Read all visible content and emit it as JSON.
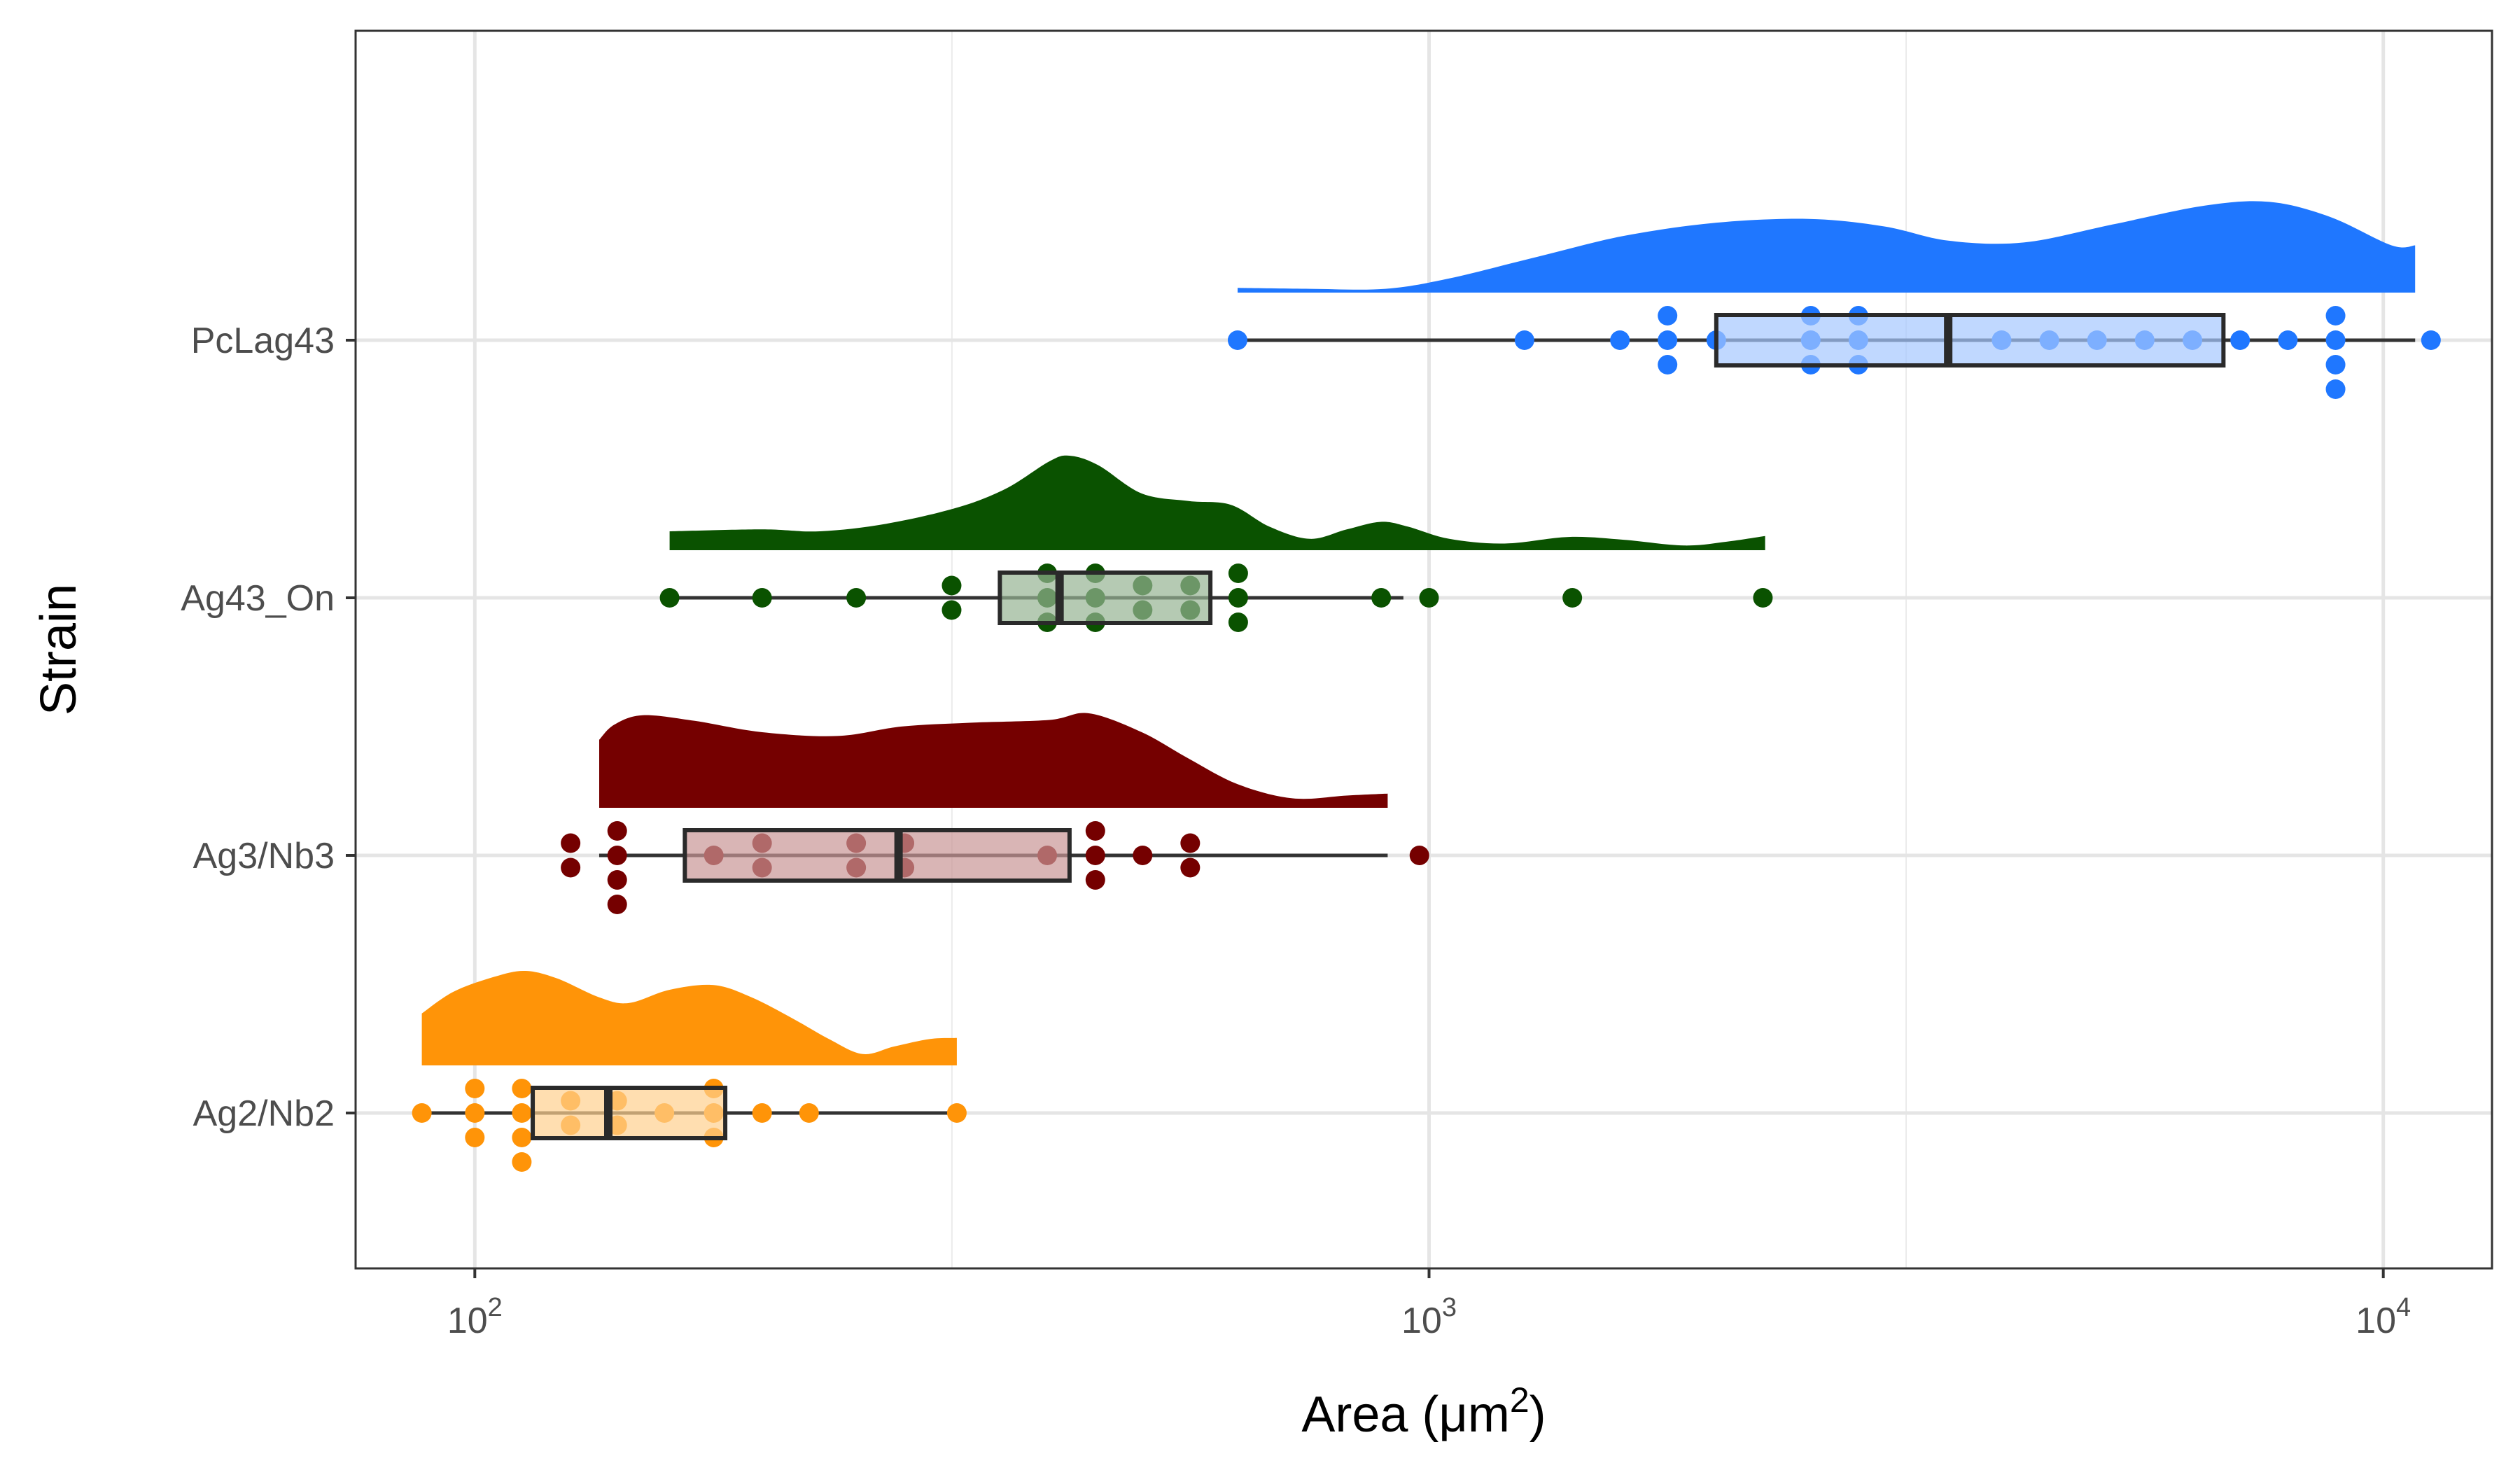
{
  "chart_data": {
    "type": "raincloud",
    "title": "",
    "xlabel": "Area (μm",
    "xlabel_superscript": "2",
    "xlabel_close": ")",
    "ylabel": "Strain",
    "x_scale": "log10",
    "xlim": [
      75,
      13000
    ],
    "x_ticks": [
      {
        "value": 100,
        "base": "10",
        "exp": "2"
      },
      {
        "value": 1000,
        "base": "10",
        "exp": "3"
      },
      {
        "value": 10000,
        "base": "10",
        "exp": "4"
      }
    ],
    "grid": true,
    "legend": "none",
    "series": [
      {
        "name": "Ag2/Nb2",
        "color": "#FF9408",
        "box_fill": "#FFD08F",
        "box": {
          "min": 88,
          "q1": 115,
          "median": 138,
          "q3": 183,
          "max": 320
        },
        "points": [
          {
            "x": 88,
            "o": 0
          },
          {
            "x": 100,
            "o": -1
          },
          {
            "x": 100,
            "o": 0
          },
          {
            "x": 100,
            "o": 1
          },
          {
            "x": 112,
            "o": -1
          },
          {
            "x": 112,
            "o": 0
          },
          {
            "x": 112,
            "o": 1
          },
          {
            "x": 112,
            "o": 2
          },
          {
            "x": 126,
            "o": -0.5
          },
          {
            "x": 126,
            "o": 0.5
          },
          {
            "x": 141,
            "o": -0.5
          },
          {
            "x": 141,
            "o": 0.5
          },
          {
            "x": 158,
            "o": 0
          },
          {
            "x": 178,
            "o": -1
          },
          {
            "x": 178,
            "o": 0
          },
          {
            "x": 178,
            "o": 1
          },
          {
            "x": 200,
            "o": 0
          },
          {
            "x": 224,
            "o": 0
          },
          {
            "x": 320,
            "o": 0
          }
        ],
        "density": [
          [
            88,
            0.55
          ],
          [
            95,
            0.78
          ],
          [
            105,
            0.94
          ],
          [
            113,
            1.0
          ],
          [
            122,
            0.92
          ],
          [
            135,
            0.72
          ],
          [
            145,
            0.66
          ],
          [
            160,
            0.8
          ],
          [
            178,
            0.85
          ],
          [
            195,
            0.72
          ],
          [
            215,
            0.5
          ],
          [
            235,
            0.28
          ],
          [
            255,
            0.12
          ],
          [
            275,
            0.2
          ],
          [
            300,
            0.28
          ],
          [
            320,
            0.29
          ]
        ]
      },
      {
        "name": "Ag3/Nb3",
        "color": "#750000",
        "box_fill": "#C99595",
        "box": {
          "min": 135,
          "q1": 166,
          "median": 278,
          "q3": 420,
          "max": 905
        },
        "points": [
          {
            "x": 126,
            "o": -0.5
          },
          {
            "x": 126,
            "o": 0.5
          },
          {
            "x": 141,
            "o": -1
          },
          {
            "x": 141,
            "o": 0
          },
          {
            "x": 141,
            "o": 1
          },
          {
            "x": 141,
            "o": 2
          },
          {
            "x": 178,
            "o": 0
          },
          {
            "x": 200,
            "o": -0.5
          },
          {
            "x": 200,
            "o": 0.5
          },
          {
            "x": 251,
            "o": -0.5
          },
          {
            "x": 251,
            "o": 0.5
          },
          {
            "x": 282,
            "o": -0.5
          },
          {
            "x": 282,
            "o": 0.5
          },
          {
            "x": 398,
            "o": 0
          },
          {
            "x": 447,
            "o": -1
          },
          {
            "x": 447,
            "o": 0
          },
          {
            "x": 447,
            "o": 1
          },
          {
            "x": 501,
            "o": 0
          },
          {
            "x": 562,
            "o": -0.5
          },
          {
            "x": 562,
            "o": 0.5
          },
          {
            "x": 977,
            "o": 0
          }
        ],
        "density": [
          [
            135,
            0.72
          ],
          [
            140,
            0.88
          ],
          [
            150,
            0.98
          ],
          [
            170,
            0.92
          ],
          [
            200,
            0.8
          ],
          [
            240,
            0.76
          ],
          [
            280,
            0.86
          ],
          [
            330,
            0.9
          ],
          [
            400,
            0.93
          ],
          [
            440,
            1.0
          ],
          [
            500,
            0.8
          ],
          [
            560,
            0.52
          ],
          [
            630,
            0.25
          ],
          [
            720,
            0.1
          ],
          [
            820,
            0.13
          ],
          [
            905,
            0.15
          ]
        ]
      },
      {
        "name": "Ag43_On",
        "color": "#0A5200",
        "box_fill": "#96B493",
        "box": {
          "min": 160,
          "q1": 355,
          "median": 410,
          "q3": 590,
          "max": 940
        },
        "points": [
          {
            "x": 160,
            "o": 0
          },
          {
            "x": 200,
            "o": 0
          },
          {
            "x": 251,
            "o": 0
          },
          {
            "x": 316,
            "o": -0.5
          },
          {
            "x": 316,
            "o": 0.5
          },
          {
            "x": 398,
            "o": -1
          },
          {
            "x": 398,
            "o": 0
          },
          {
            "x": 398,
            "o": 1
          },
          {
            "x": 447,
            "o": -1
          },
          {
            "x": 447,
            "o": 0
          },
          {
            "x": 447,
            "o": 1
          },
          {
            "x": 501,
            "o": -0.5
          },
          {
            "x": 501,
            "o": 0.5
          },
          {
            "x": 562,
            "o": -0.5
          },
          {
            "x": 562,
            "o": 0.5
          },
          {
            "x": 631,
            "o": -1
          },
          {
            "x": 631,
            "o": 0
          },
          {
            "x": 631,
            "o": 1
          },
          {
            "x": 891,
            "o": 0
          },
          {
            "x": 1000,
            "o": 0
          },
          {
            "x": 1413,
            "o": 0
          },
          {
            "x": 2238,
            "o": 0
          }
        ],
        "density": [
          [
            160,
            0.2
          ],
          [
            200,
            0.22
          ],
          [
            230,
            0.2
          ],
          [
            270,
            0.28
          ],
          [
            320,
            0.45
          ],
          [
            360,
            0.65
          ],
          [
            400,
            0.94
          ],
          [
            420,
            1.0
          ],
          [
            450,
            0.9
          ],
          [
            500,
            0.6
          ],
          [
            560,
            0.52
          ],
          [
            620,
            0.48
          ],
          [
            680,
            0.25
          ],
          [
            750,
            0.12
          ],
          [
            820,
            0.22
          ],
          [
            890,
            0.3
          ],
          [
            950,
            0.25
          ],
          [
            1050,
            0.12
          ],
          [
            1200,
            0.07
          ],
          [
            1400,
            0.14
          ],
          [
            1600,
            0.11
          ],
          [
            1850,
            0.05
          ],
          [
            2050,
            0.09
          ],
          [
            2250,
            0.15
          ]
        ]
      },
      {
        "name": "PcLag43",
        "color": "#1F77FF",
        "box_fill": "#A5C8FF",
        "box": {
          "min": 630,
          "q1": 2000,
          "median": 3500,
          "q3": 6800,
          "max": 10800
        },
        "points": [
          {
            "x": 630,
            "o": 0
          },
          {
            "x": 1259,
            "o": 0
          },
          {
            "x": 1585,
            "o": 0
          },
          {
            "x": 1778,
            "o": -1
          },
          {
            "x": 1778,
            "o": 0
          },
          {
            "x": 1778,
            "o": 1
          },
          {
            "x": 2000,
            "o": 0
          },
          {
            "x": 2512,
            "o": -1
          },
          {
            "x": 2512,
            "o": 0
          },
          {
            "x": 2512,
            "o": 1
          },
          {
            "x": 2818,
            "o": -1
          },
          {
            "x": 2818,
            "o": 0
          },
          {
            "x": 2818,
            "o": 1
          },
          {
            "x": 3981,
            "o": 0
          },
          {
            "x": 4467,
            "o": 0
          },
          {
            "x": 5012,
            "o": 0
          },
          {
            "x": 5623,
            "o": 0
          },
          {
            "x": 6310,
            "o": 0
          },
          {
            "x": 7079,
            "o": 0
          },
          {
            "x": 7943,
            "o": 0
          },
          {
            "x": 8913,
            "o": -1
          },
          {
            "x": 8913,
            "o": 0
          },
          {
            "x": 8913,
            "o": 1
          },
          {
            "x": 8913,
            "o": 2
          },
          {
            "x": 11220,
            "o": 0
          }
        ],
        "density": [
          [
            630,
            0.05
          ],
          [
            750,
            0.04
          ],
          [
            900,
            0.04
          ],
          [
            1050,
            0.15
          ],
          [
            1300,
            0.38
          ],
          [
            1600,
            0.6
          ],
          [
            2000,
            0.74
          ],
          [
            2500,
            0.78
          ],
          [
            3000,
            0.7
          ],
          [
            3500,
            0.55
          ],
          [
            4200,
            0.53
          ],
          [
            5200,
            0.72
          ],
          [
            6500,
            0.92
          ],
          [
            7600,
            0.96
          ],
          [
            8800,
            0.8
          ],
          [
            10200,
            0.5
          ],
          [
            10800,
            0.5
          ]
        ]
      }
    ]
  }
}
